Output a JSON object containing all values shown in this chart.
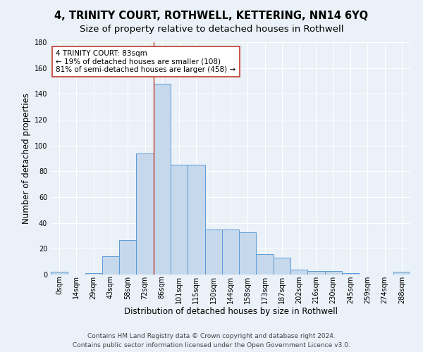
{
  "title": "4, TRINITY COURT, ROTHWELL, KETTERING, NN14 6YQ",
  "subtitle": "Size of property relative to detached houses in Rothwell",
  "xlabel": "Distribution of detached houses by size in Rothwell",
  "ylabel": "Number of detached properties",
  "bin_labels": [
    "0sqm",
    "14sqm",
    "29sqm",
    "43sqm",
    "58sqm",
    "72sqm",
    "86sqm",
    "101sqm",
    "115sqm",
    "130sqm",
    "144sqm",
    "158sqm",
    "173sqm",
    "187sqm",
    "202sqm",
    "216sqm",
    "230sqm",
    "245sqm",
    "259sqm",
    "274sqm",
    "288sqm"
  ],
  "bar_heights": [
    2,
    0,
    1,
    14,
    27,
    94,
    148,
    85,
    85,
    35,
    35,
    33,
    16,
    13,
    4,
    3,
    3,
    1,
    0,
    0,
    2
  ],
  "bar_color": "#c5d8ec",
  "bar_edge_color": "#5b9bd5",
  "bar_width": 1.0,
  "property_line_x": 6.0,
  "property_line_color": "#c0392b",
  "annotation_text": "4 TRINITY COURT: 83sqm\n← 19% of detached houses are smaller (108)\n81% of semi-detached houses are larger (458) →",
  "annotation_box_color": "white",
  "annotation_box_edge_color": "#c0392b",
  "ylim": [
    0,
    180
  ],
  "yticks": [
    0,
    20,
    40,
    60,
    80,
    100,
    120,
    140,
    160,
    180
  ],
  "footer_line1": "Contains HM Land Registry data © Crown copyright and database right 2024.",
  "footer_line2": "Contains public sector information licensed under the Open Government Licence v3.0.",
  "bg_color": "#eaf1f8",
  "plot_bg_color": "#eaf1f8",
  "grid_color": "white",
  "title_fontsize": 10.5,
  "subtitle_fontsize": 9.5,
  "axis_label_fontsize": 8.5,
  "tick_fontsize": 7,
  "annotation_fontsize": 7.5,
  "footer_fontsize": 6.5
}
